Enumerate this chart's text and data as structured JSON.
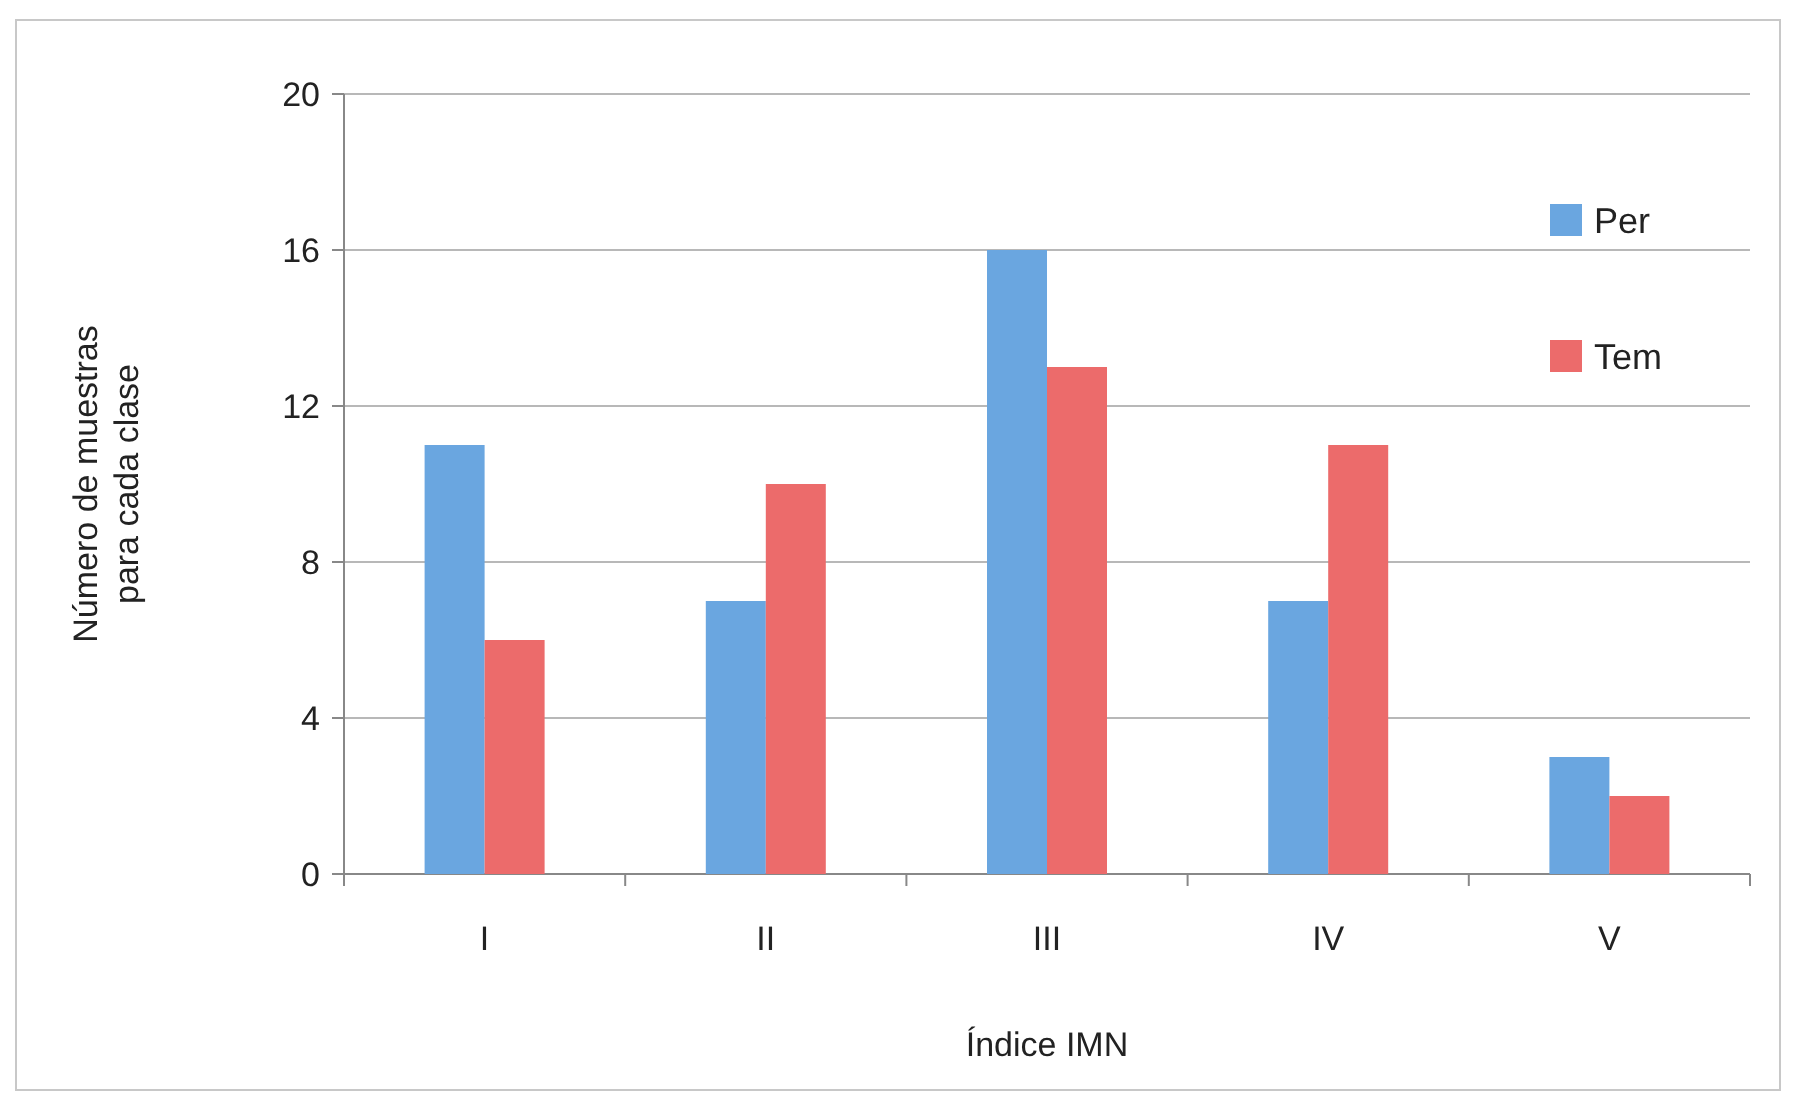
{
  "chart_data": {
    "type": "bar",
    "xlabel": "Índice IMN",
    "ylabel": "Número de muestras para cada clase",
    "categories": [
      "I",
      "II",
      "III",
      "IV",
      "V"
    ],
    "series": [
      {
        "name": "Per",
        "color": "#6aa6e0",
        "values": [
          11,
          7,
          16,
          7,
          3
        ]
      },
      {
        "name": "Tem",
        "color": "#ec6b6b",
        "values": [
          6,
          10,
          13,
          11,
          2
        ]
      }
    ],
    "ylim": [
      0,
      20
    ],
    "yticks": [
      0,
      4,
      8,
      12,
      16,
      20
    ],
    "grid": "y",
    "legend": "top right"
  }
}
